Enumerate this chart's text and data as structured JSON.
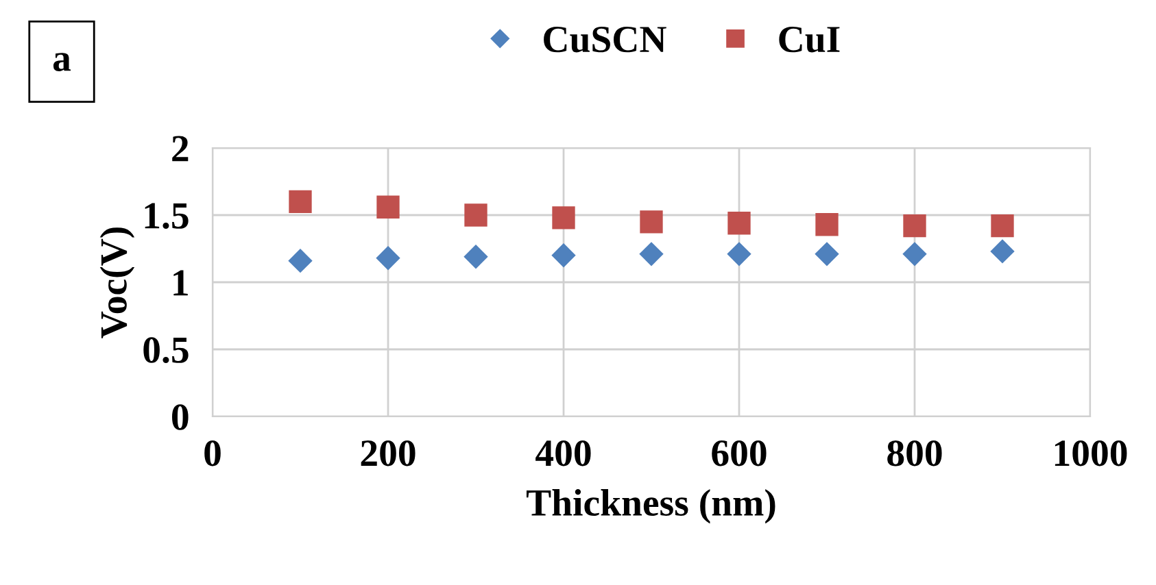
{
  "chart_data": {
    "type": "scatter",
    "x": [
      100,
      200,
      300,
      400,
      500,
      600,
      700,
      800,
      900
    ],
    "series": [
      {
        "name": "CuSCN",
        "color": "#4f81bd",
        "marker": "diamond",
        "values": [
          1.16,
          1.18,
          1.19,
          1.2,
          1.21,
          1.21,
          1.21,
          1.21,
          1.23
        ]
      },
      {
        "name": "CuI",
        "color": "#c0504d",
        "marker": "square",
        "values": [
          1.6,
          1.56,
          1.5,
          1.48,
          1.45,
          1.44,
          1.43,
          1.42,
          1.42
        ]
      }
    ],
    "xlabel": "Thickness (nm)",
    "ylabel": "Voc(V)",
    "xlim": [
      0,
      1000
    ],
    "xticks": [
      0,
      200,
      400,
      600,
      800,
      1000
    ],
    "ylim": [
      0,
      2
    ],
    "yticks": [
      0,
      {
        "value": 0.5,
        "label": "0.5"
      },
      1,
      {
        "value": 1.5,
        "label": "1.5"
      },
      2
    ],
    "grid": true,
    "legend": "top",
    "annotations": [
      "a"
    ]
  }
}
